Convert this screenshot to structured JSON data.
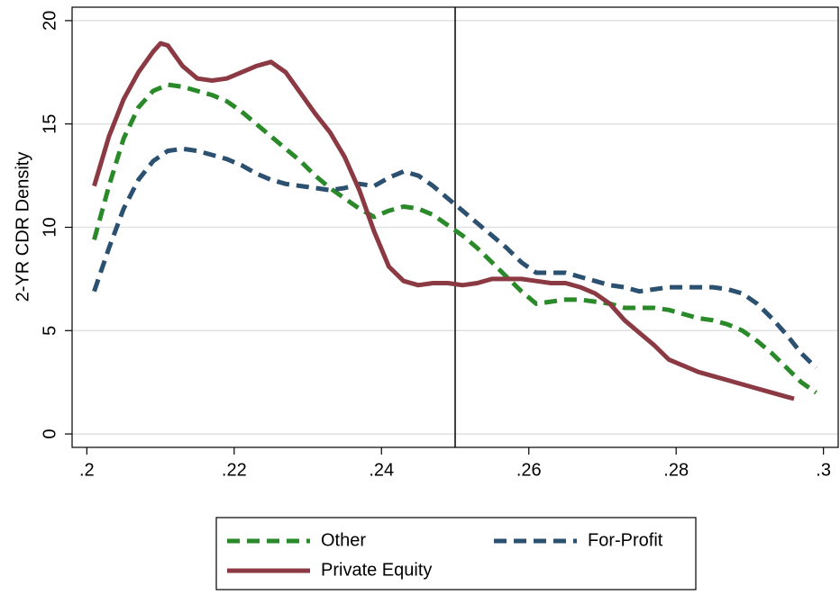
{
  "chart_data": {
    "type": "line",
    "y_label": "2-YR CDR Density",
    "xlim": [
      0.198,
      0.302
    ],
    "ylim": [
      -0.65,
      20.65
    ],
    "xticks": [
      {
        "value": 0.2,
        "label": ".2"
      },
      {
        "value": 0.22,
        "label": ".22"
      },
      {
        "value": 0.24,
        "label": ".24"
      },
      {
        "value": 0.26,
        "label": ".26"
      },
      {
        "value": 0.28,
        "label": ".28"
      },
      {
        "value": 0.3,
        "label": ".3"
      }
    ],
    "yticks": [
      0,
      5,
      10,
      15,
      20
    ],
    "grid": true,
    "vline": 0.25,
    "legend": "bottom",
    "series": [
      {
        "name": "Other",
        "color": "#2a8a2a",
        "style": "dash",
        "x": [
          0.201,
          0.203,
          0.205,
          0.207,
          0.209,
          0.211,
          0.213,
          0.215,
          0.217,
          0.219,
          0.221,
          0.223,
          0.225,
          0.227,
          0.229,
          0.231,
          0.233,
          0.235,
          0.237,
          0.239,
          0.241,
          0.243,
          0.245,
          0.247,
          0.249,
          0.251,
          0.253,
          0.255,
          0.257,
          0.259,
          0.261,
          0.263,
          0.265,
          0.267,
          0.269,
          0.271,
          0.273,
          0.275,
          0.277,
          0.279,
          0.281,
          0.283,
          0.285,
          0.287,
          0.289,
          0.291,
          0.293,
          0.295,
          0.297,
          0.299
        ],
        "values": [
          9.4,
          12,
          14.3,
          15.8,
          16.6,
          16.9,
          16.8,
          16.6,
          16.4,
          16.1,
          15.6,
          15,
          14.4,
          13.8,
          13.2,
          12.5,
          11.9,
          11.4,
          10.9,
          10.5,
          10.8,
          11,
          10.9,
          10.6,
          10.1,
          9.6,
          9,
          8.3,
          7.6,
          6.9,
          6.3,
          6.4,
          6.5,
          6.5,
          6.4,
          6.3,
          6.1,
          6.1,
          6.1,
          6,
          5.8,
          5.6,
          5.5,
          5.3,
          5,
          4.5,
          3.9,
          3.2,
          2.5,
          2.0
        ]
      },
      {
        "name": "For-Profit",
        "color": "#2b5070",
        "style": "dash",
        "x": [
          0.201,
          0.203,
          0.205,
          0.207,
          0.209,
          0.211,
          0.213,
          0.215,
          0.217,
          0.219,
          0.221,
          0.223,
          0.225,
          0.227,
          0.229,
          0.231,
          0.233,
          0.235,
          0.237,
          0.239,
          0.241,
          0.243,
          0.245,
          0.247,
          0.249,
          0.251,
          0.253,
          0.255,
          0.257,
          0.259,
          0.261,
          0.263,
          0.265,
          0.267,
          0.269,
          0.271,
          0.273,
          0.275,
          0.277,
          0.279,
          0.281,
          0.283,
          0.285,
          0.287,
          0.289,
          0.291,
          0.293,
          0.295,
          0.297,
          0.299
        ],
        "values": [
          6.9,
          9,
          10.9,
          12.3,
          13.2,
          13.7,
          13.8,
          13.7,
          13.5,
          13.3,
          13,
          12.6,
          12.3,
          12.1,
          12,
          11.9,
          11.8,
          11.9,
          12.1,
          12.0,
          12.4,
          12.7,
          12.5,
          12,
          11.4,
          10.8,
          10.2,
          9.6,
          9,
          8.3,
          7.8,
          7.8,
          7.8,
          7.6,
          7.4,
          7.2,
          7.1,
          6.9,
          7.0,
          7.1,
          7.1,
          7.1,
          7.1,
          7.0,
          6.8,
          6.3,
          5.6,
          4.8,
          3.9,
          3.2
        ]
      },
      {
        "name": "Private Equity",
        "color": "#8b3a44",
        "style": "solid",
        "x": [
          0.201,
          0.203,
          0.205,
          0.207,
          0.209,
          0.21,
          0.211,
          0.213,
          0.215,
          0.217,
          0.219,
          0.221,
          0.223,
          0.225,
          0.227,
          0.229,
          0.231,
          0.233,
          0.235,
          0.237,
          0.239,
          0.241,
          0.243,
          0.245,
          0.247,
          0.249,
          0.251,
          0.253,
          0.255,
          0.257,
          0.259,
          0.261,
          0.263,
          0.265,
          0.267,
          0.269,
          0.271,
          0.273,
          0.275,
          0.277,
          0.279,
          0.281,
          0.283,
          0.285,
          0.287,
          0.289,
          0.291,
          0.293,
          0.295,
          0.296
        ],
        "values": [
          12,
          14.4,
          16.2,
          17.5,
          18.5,
          18.9,
          18.8,
          17.8,
          17.2,
          17.1,
          17.2,
          17.5,
          17.8,
          18.0,
          17.5,
          16.5,
          15.5,
          14.6,
          13.4,
          11.8,
          9.8,
          8.1,
          7.4,
          7.2,
          7.3,
          7.3,
          7.2,
          7.3,
          7.5,
          7.5,
          7.5,
          7.4,
          7.3,
          7.3,
          7.1,
          6.8,
          6.3,
          5.5,
          4.9,
          4.3,
          3.6,
          3.3,
          3.0,
          2.8,
          2.6,
          2.4,
          2.2,
          2.0,
          1.8,
          1.7
        ]
      }
    ]
  }
}
